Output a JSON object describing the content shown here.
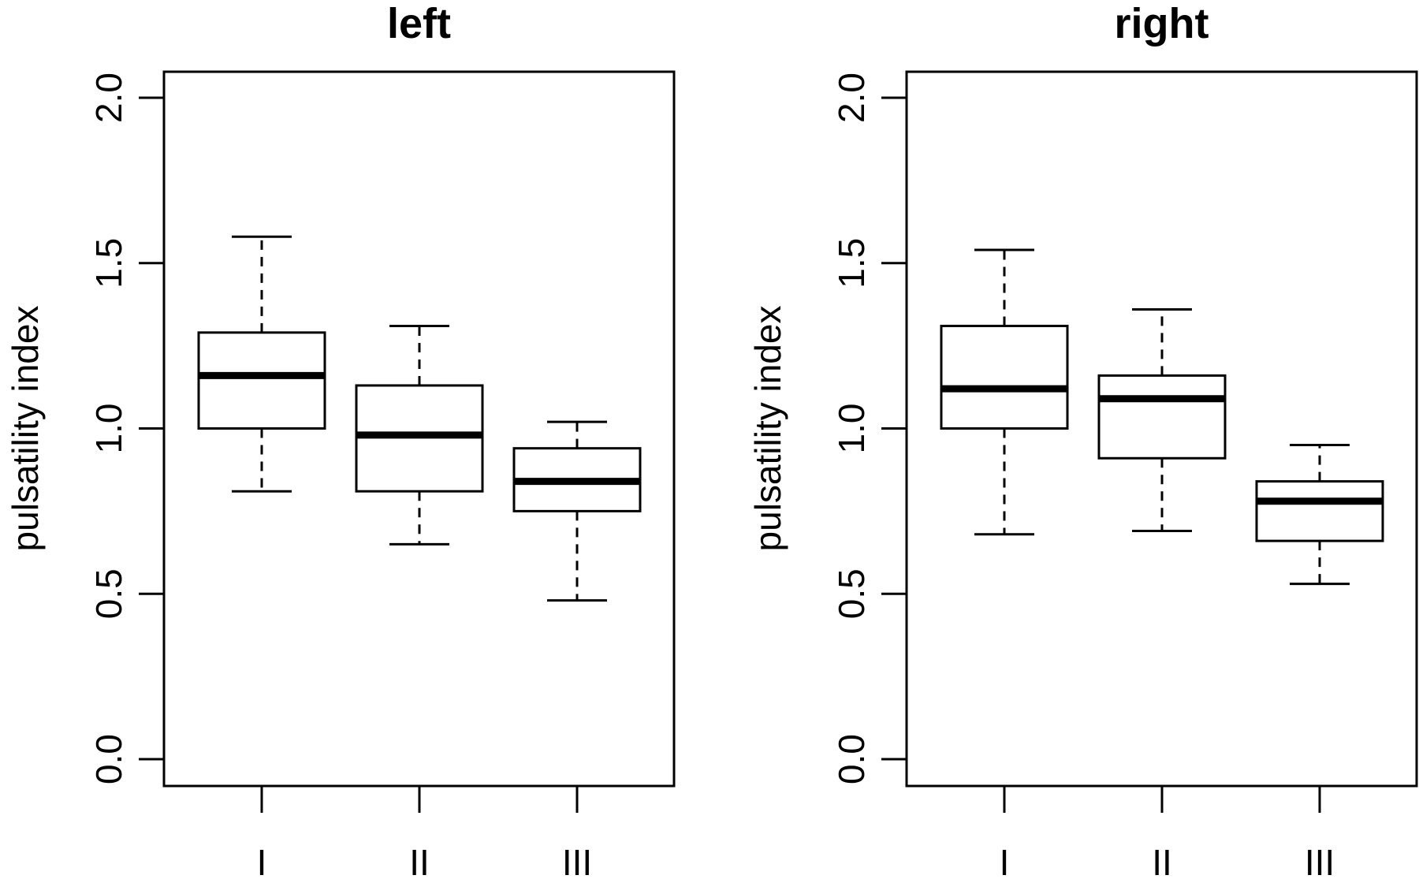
{
  "chart_data": [
    {
      "type": "box",
      "title": "left",
      "xlabel": "",
      "ylabel": "pulsatility index",
      "ylim": [
        0.0,
        2.0
      ],
      "yticks": [
        "0.0",
        "0.5",
        "1.0",
        "1.5",
        "2.0"
      ],
      "grid": false,
      "categories": [
        "I",
        "II",
        "III"
      ],
      "boxes": [
        {
          "category": "I",
          "whisker_low": 0.81,
          "q1": 1.0,
          "median": 1.16,
          "q3": 1.29,
          "whisker_high": 1.58
        },
        {
          "category": "II",
          "whisker_low": 0.65,
          "q1": 0.81,
          "median": 0.98,
          "q3": 1.13,
          "whisker_high": 1.31
        },
        {
          "category": "III",
          "whisker_low": 0.48,
          "q1": 0.75,
          "median": 0.84,
          "q3": 0.94,
          "whisker_high": 1.02
        }
      ]
    },
    {
      "type": "box",
      "title": "right",
      "xlabel": "",
      "ylabel": "pulsatility index",
      "ylim": [
        0.0,
        2.0
      ],
      "yticks": [
        "0.0",
        "0.5",
        "1.0",
        "1.5",
        "2.0"
      ],
      "grid": false,
      "categories": [
        "I",
        "II",
        "III"
      ],
      "boxes": [
        {
          "category": "I",
          "whisker_low": 0.68,
          "q1": 1.0,
          "median": 1.12,
          "q3": 1.31,
          "whisker_high": 1.54
        },
        {
          "category": "II",
          "whisker_low": 0.69,
          "q1": 0.91,
          "median": 1.09,
          "q3": 1.16,
          "whisker_high": 1.36
        },
        {
          "category": "III",
          "whisker_low": 0.53,
          "q1": 0.66,
          "median": 0.78,
          "q3": 0.84,
          "whisker_high": 0.95
        }
      ]
    }
  ]
}
